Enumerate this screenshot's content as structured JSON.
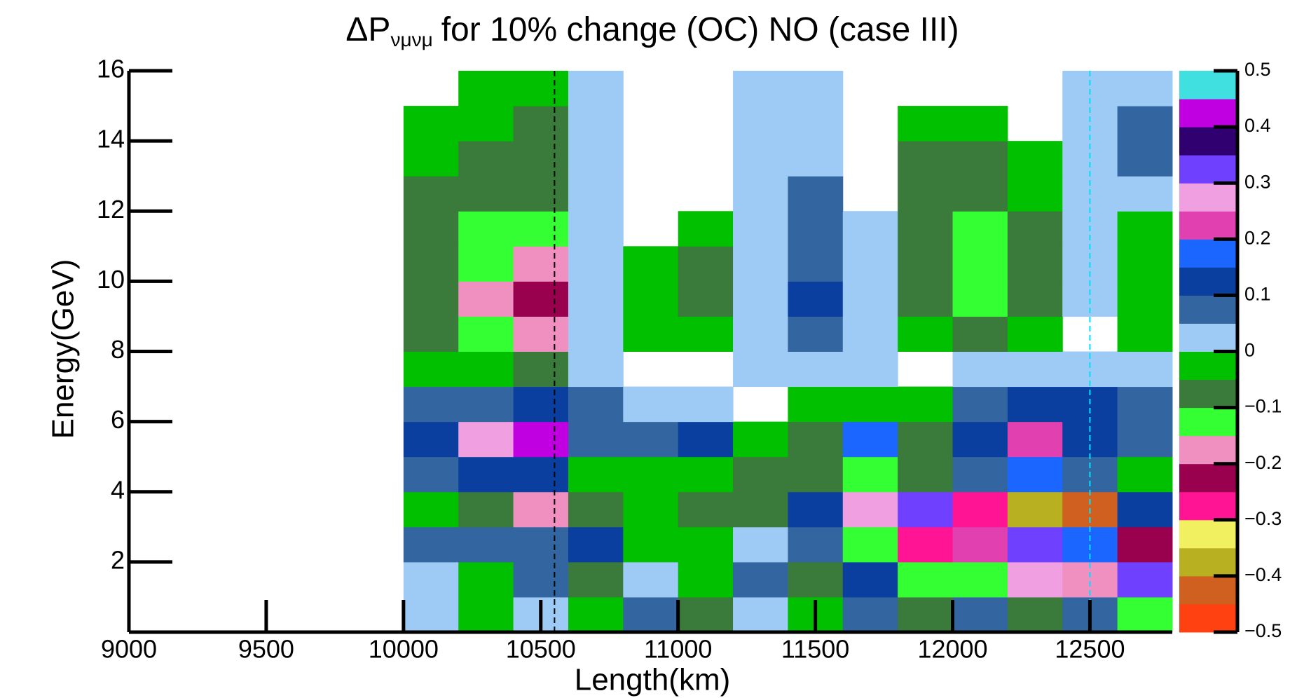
{
  "chart_data": {
    "type": "contour",
    "title": {
      "main": "ΔP",
      "subscript": "νμνμ",
      "rest": "for 10% change (OC) NO (case III)"
    },
    "x_label": "Length(km)",
    "y_label": "Energy(GeV)",
    "xlim": [
      9000,
      12800
    ],
    "ylim": [
      0,
      16
    ],
    "xticks": [
      9000,
      9500,
      10000,
      10500,
      11000,
      11500,
      12000,
      12500
    ],
    "yticks": [
      2,
      4,
      6,
      8,
      10,
      12,
      14,
      16
    ],
    "zlim": [
      -0.5,
      0.5
    ],
    "zticks": [
      {
        "value": -0.5,
        "label": "−0.5"
      },
      {
        "value": -0.4,
        "label": "−0.4"
      },
      {
        "value": -0.3,
        "label": "−0.3"
      },
      {
        "value": -0.2,
        "label": "−0.2"
      },
      {
        "value": -0.1,
        "label": "−0.1"
      },
      0,
      0.1,
      0.2,
      0.3,
      0.4,
      0.5
    ],
    "palette": [
      "#ff4010",
      "#d06020",
      "#b8b020",
      "#f0f060",
      "#ff1493",
      "#99004d",
      "#f090c0",
      "#33ff33",
      "#3a7a3a",
      "#00c000",
      "#9ecbf5",
      "#3366a0",
      "#0a3fa0",
      "#1a66ff",
      "#e040b0",
      "#f0a0e0",
      "#7040ff",
      "#300070",
      "#c000e0",
      "#40e0e0"
    ],
    "x": [
      10000,
      10200,
      10400,
      10600,
      10800,
      11000,
      11200,
      11400,
      11600,
      11800,
      12000,
      12200,
      12400,
      12600,
      12800
    ],
    "y": [
      0,
      1,
      2,
      3,
      4,
      5,
      6,
      7,
      8,
      9,
      10,
      11,
      12,
      13,
      14,
      15,
      16
    ],
    "z": [
      [
        0.03,
        -0.02,
        0.04,
        -0.03,
        0.05,
        -0.06,
        0.03,
        -0.04,
        0.05,
        -0.07,
        0.06,
        -0.1,
        0.08,
        -0.12
      ],
      [
        0.04,
        -0.03,
        0.05,
        -0.06,
        0.02,
        -0.04,
        0.05,
        -0.08,
        0.12,
        -0.15,
        -0.12,
        0.25,
        -0.2,
        0.3
      ],
      [
        0.06,
        0.06,
        0.06,
        0.1,
        -0.03,
        -0.04,
        0.03,
        0.06,
        -0.12,
        -0.28,
        0.2,
        0.3,
        0.18,
        -0.25
      ],
      [
        -0.05,
        -0.1,
        -0.2,
        -0.06,
        -0.04,
        -0.06,
        -0.1,
        0.14,
        0.28,
        0.3,
        -0.3,
        -0.38,
        -0.42,
        0.12
      ],
      [
        0.05,
        0.1,
        0.12,
        -0.03,
        -0.04,
        -0.03,
        -0.06,
        -0.1,
        -0.12,
        -0.08,
        0.08,
        0.15,
        0.08,
        -0.04
      ],
      [
        0.1,
        0.25,
        0.42,
        0.07,
        0.08,
        0.12,
        -0.04,
        -0.08,
        0.17,
        -0.06,
        0.12,
        0.22,
        0.14,
        0.05
      ],
      [
        0.06,
        0.08,
        0.1,
        0.06,
        0.02,
        0.03,
        null,
        -0.03,
        -0.03,
        -0.02,
        0.06,
        0.1,
        0.12,
        0.06
      ],
      [
        -0.03,
        -0.05,
        -0.06,
        0.03,
        null,
        null,
        0.02,
        0.03,
        0.02,
        null,
        0.02,
        0.02,
        0.03,
        0.03
      ],
      [
        -0.08,
        -0.14,
        -0.18,
        0.02,
        -0.02,
        -0.04,
        0.03,
        0.06,
        0.02,
        -0.04,
        -0.08,
        -0.03,
        null,
        -0.02
      ],
      [
        -0.1,
        -0.17,
        -0.21,
        0.02,
        -0.03,
        -0.07,
        0.04,
        0.1,
        0.03,
        -0.06,
        -0.12,
        -0.06,
        0.02,
        -0.04
      ],
      [
        -0.1,
        -0.15,
        -0.17,
        0.02,
        -0.03,
        -0.07,
        0.03,
        0.08,
        0.02,
        -0.07,
        -0.13,
        -0.07,
        0.02,
        -0.04
      ],
      [
        -0.08,
        -0.12,
        -0.13,
        0.02,
        null,
        -0.04,
        0.03,
        0.07,
        0.02,
        -0.08,
        -0.12,
        -0.06,
        0.02,
        -0.03
      ],
      [
        -0.06,
        -0.09,
        -0.1,
        0.02,
        null,
        null,
        0.03,
        0.06,
        null,
        -0.08,
        -0.1,
        -0.04,
        0.03,
        0.04
      ],
      [
        -0.04,
        -0.07,
        -0.08,
        0.02,
        null,
        null,
        0.02,
        0.04,
        null,
        -0.06,
        -0.07,
        -0.02,
        0.04,
        0.05
      ],
      [
        -0.02,
        -0.05,
        -0.07,
        0.02,
        null,
        null,
        0.02,
        0.03,
        null,
        -0.03,
        -0.04,
        null,
        0.04,
        0.05
      ],
      [
        null,
        -0.02,
        -0.03,
        0.02,
        null,
        null,
        0.02,
        0.03,
        null,
        null,
        null,
        null,
        0.03,
        0.04
      ]
    ],
    "lines": [
      {
        "x": 10550,
        "color": "#000000"
      },
      {
        "x": 12500,
        "color": "#00e0ff"
      }
    ]
  }
}
